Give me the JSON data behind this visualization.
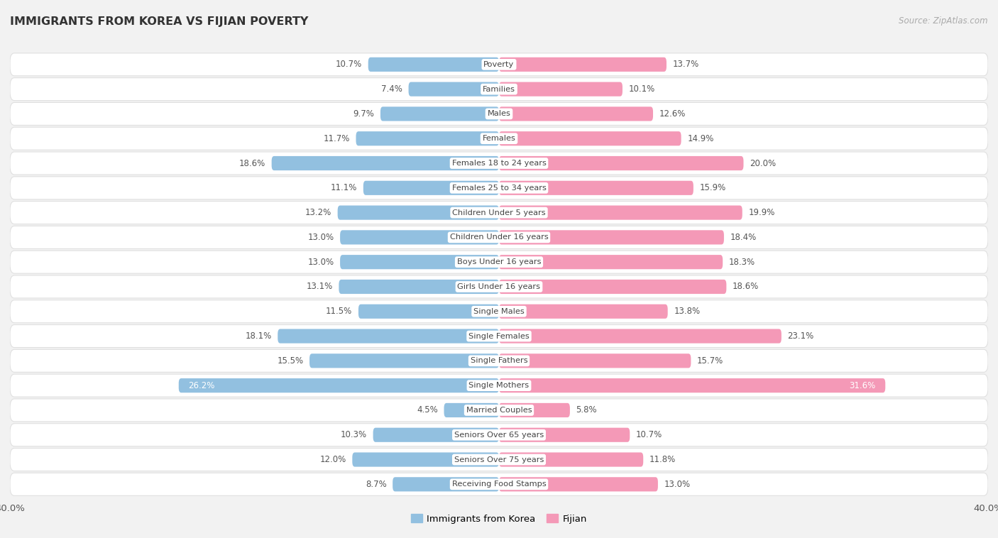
{
  "title": "IMMIGRANTS FROM KOREA VS FIJIAN POVERTY",
  "source": "Source: ZipAtlas.com",
  "categories": [
    "Poverty",
    "Families",
    "Males",
    "Females",
    "Females 18 to 24 years",
    "Females 25 to 34 years",
    "Children Under 5 years",
    "Children Under 16 years",
    "Boys Under 16 years",
    "Girls Under 16 years",
    "Single Males",
    "Single Females",
    "Single Fathers",
    "Single Mothers",
    "Married Couples",
    "Seniors Over 65 years",
    "Seniors Over 75 years",
    "Receiving Food Stamps"
  ],
  "korea_values": [
    10.7,
    7.4,
    9.7,
    11.7,
    18.6,
    11.1,
    13.2,
    13.0,
    13.0,
    13.1,
    11.5,
    18.1,
    15.5,
    26.2,
    4.5,
    10.3,
    12.0,
    8.7
  ],
  "fijian_values": [
    13.7,
    10.1,
    12.6,
    14.9,
    20.0,
    15.9,
    19.9,
    18.4,
    18.3,
    18.6,
    13.8,
    23.1,
    15.7,
    31.6,
    5.8,
    10.7,
    11.8,
    13.0
  ],
  "korea_color": "#92c0e0",
  "fijian_color": "#f499b7",
  "background_color": "#f2f2f2",
  "bar_background": "#ffffff",
  "row_outline": "#e0e0e0",
  "axis_limit": 40.0,
  "bar_height": 0.58,
  "legend_labels": [
    "Immigrants from Korea",
    "Fijian"
  ],
  "single_mothers_korea_text": "#ffffff",
  "single_mothers_fijian_text": "#ffffff"
}
